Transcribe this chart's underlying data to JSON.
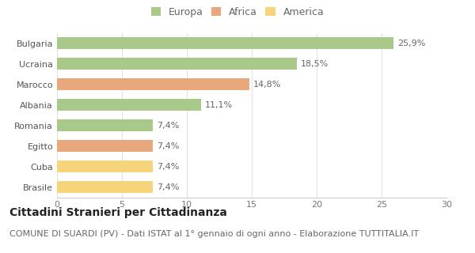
{
  "categories": [
    "Brasile",
    "Cuba",
    "Egitto",
    "Romania",
    "Albania",
    "Marocco",
    "Ucraina",
    "Bulgaria"
  ],
  "values": [
    7.4,
    7.4,
    7.4,
    7.4,
    11.1,
    14.8,
    18.5,
    25.9
  ],
  "labels": [
    "7,4%",
    "7,4%",
    "7,4%",
    "7,4%",
    "11,1%",
    "14,8%",
    "18,5%",
    "25,9%"
  ],
  "colors": [
    "#F5D47A",
    "#F5D47A",
    "#E8A87C",
    "#A8C98A",
    "#A8C98A",
    "#E8A87C",
    "#A8C98A",
    "#A8C98A"
  ],
  "legend_labels": [
    "Europa",
    "Africa",
    "America"
  ],
  "legend_colors": [
    "#A8C98A",
    "#E8A87C",
    "#F5D47A"
  ],
  "title": "Cittadini Stranieri per Cittadinanza",
  "subtitle": "COMUNE DI SUARDI (PV) - Dati ISTAT al 1° gennaio di ogni anno - Elaborazione TUTTITALIA.IT",
  "xlim": [
    0,
    30
  ],
  "xticks": [
    0,
    5,
    10,
    15,
    20,
    25,
    30
  ],
  "background_color": "#ffffff",
  "bar_height": 0.55,
  "title_fontsize": 10,
  "subtitle_fontsize": 8,
  "label_fontsize": 8,
  "tick_fontsize": 8,
  "legend_fontsize": 9
}
